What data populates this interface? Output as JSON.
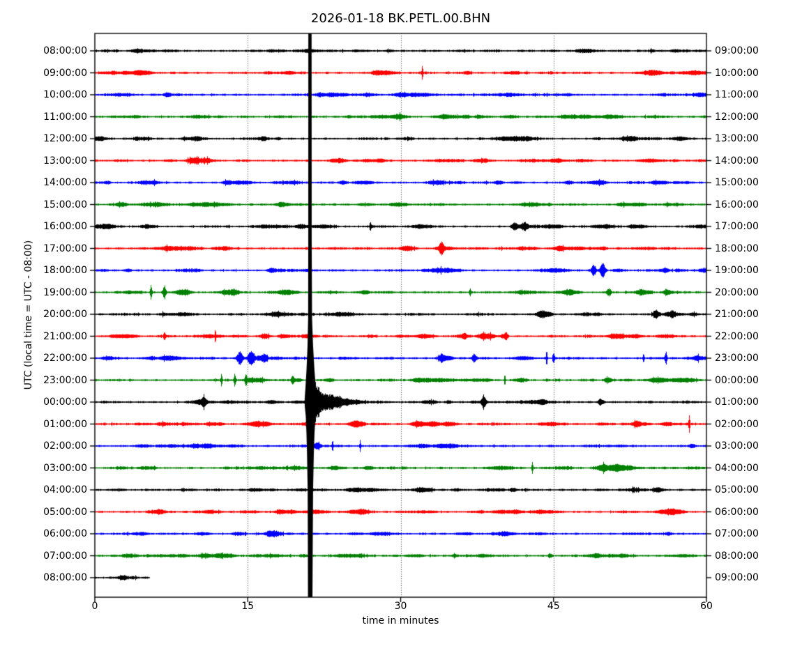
{
  "title": "2026-01-18 BK.PETL.00.BHN",
  "axes": {
    "xlabel": "time in minutes",
    "ylabel": "UTC (local time = UTC - 08:00)",
    "x_ticks": [
      "0",
      "15",
      "30",
      "45",
      "60"
    ],
    "x_tick_minutes": [
      0,
      15,
      30,
      45,
      60
    ],
    "x_range": [
      0,
      60
    ],
    "gridline_minutes": [
      15,
      30,
      45
    ],
    "grid_style": "dotted-vertical"
  },
  "chart_data": {
    "type": "line",
    "subtype": "seismogram-dayplot",
    "station": "BK.PETL.00.BHN",
    "date": "2026-01-18",
    "minutes_per_row": 60,
    "color_cycle": [
      "#000000",
      "#ff0000",
      "#0000ff",
      "#008000"
    ],
    "major_event": {
      "row_index": 16,
      "row_utc": "00:00:00",
      "minute": 21.0,
      "description": "Large clipped seismic event; spike spans entire plot height with decaying coda to ~minute 26"
    },
    "rows": [
      {
        "utc": "08:00:00",
        "right": "09:00:00",
        "color": "#000000",
        "duration_min": 60,
        "events": []
      },
      {
        "utc": "09:00:00",
        "right": "10:00:00",
        "color": "#ff0000",
        "duration_min": 60,
        "events": [
          {
            "m": 32.1,
            "a": 9,
            "w": 0.06
          }
        ]
      },
      {
        "utc": "10:00:00",
        "right": "11:00:00",
        "color": "#0000ff",
        "duration_min": 60,
        "events": []
      },
      {
        "utc": "11:00:00",
        "right": "12:00:00",
        "color": "#008000",
        "duration_min": 60,
        "events": []
      },
      {
        "utc": "12:00:00",
        "right": "13:00:00",
        "color": "#000000",
        "duration_min": 60,
        "events": []
      },
      {
        "utc": "13:00:00",
        "right": "14:00:00",
        "color": "#ff0000",
        "duration_min": 60,
        "events": []
      },
      {
        "utc": "14:00:00",
        "right": "15:00:00",
        "color": "#0000ff",
        "duration_min": 60,
        "events": [
          {
            "m": 49.5,
            "a": 2.5,
            "w": 0.6
          }
        ]
      },
      {
        "utc": "15:00:00",
        "right": "16:00:00",
        "color": "#008000",
        "duration_min": 60,
        "events": [
          {
            "m": 18.3,
            "a": 3,
            "w": 0.5
          }
        ]
      },
      {
        "utc": "16:00:00",
        "right": "17:00:00",
        "color": "#000000",
        "duration_min": 60,
        "events": [
          {
            "m": 27.0,
            "a": 6,
            "w": 0.07
          },
          {
            "m": 41.2,
            "a": 4,
            "w": 0.35
          },
          {
            "m": 42.1,
            "a": 3.5,
            "w": 0.3
          }
        ]
      },
      {
        "utc": "17:00:00",
        "right": "18:00:00",
        "color": "#ff0000",
        "duration_min": 60,
        "events": [
          {
            "m": 30.6,
            "a": 3,
            "w": 0.7
          },
          {
            "m": 34.0,
            "a": 6,
            "w": 0.22
          }
        ]
      },
      {
        "utc": "18:00:00",
        "right": "19:00:00",
        "color": "#0000ff",
        "duration_min": 60,
        "events": [
          {
            "m": 48.9,
            "a": 8,
            "w": 0.22
          },
          {
            "m": 49.8,
            "a": 9,
            "w": 0.28
          },
          {
            "m": 56.0,
            "a": 3,
            "w": 0.3
          }
        ]
      },
      {
        "utc": "19:00:00",
        "right": "20:00:00",
        "color": "#008000",
        "duration_min": 60,
        "events": [
          {
            "m": 5.5,
            "a": 8,
            "w": 0.1
          },
          {
            "m": 6.8,
            "a": 7,
            "w": 0.16
          },
          {
            "m": 8.7,
            "a": 3.5,
            "w": 0.7
          },
          {
            "m": 36.8,
            "a": 5,
            "w": 0.09
          },
          {
            "m": 50.4,
            "a": 5,
            "w": 0.22
          },
          {
            "m": 56.2,
            "a": 3,
            "w": 0.4
          }
        ]
      },
      {
        "utc": "20:00:00",
        "right": "21:00:00",
        "color": "#000000",
        "duration_min": 60,
        "events": [
          {
            "m": 55.0,
            "a": 5,
            "w": 0.3
          },
          {
            "m": 56.6,
            "a": 3,
            "w": 0.3
          }
        ]
      },
      {
        "utc": "21:00:00",
        "right": "22:00:00",
        "color": "#ff0000",
        "duration_min": 60,
        "events": [
          {
            "m": 6.8,
            "a": 5,
            "w": 0.09
          },
          {
            "m": 11.8,
            "a": 10,
            "w": 0.05
          },
          {
            "m": 16.6,
            "a": 3,
            "w": 0.4
          },
          {
            "m": 36.2,
            "a": 4,
            "w": 0.3
          },
          {
            "m": 40.3,
            "a": 4,
            "w": 0.2
          }
        ]
      },
      {
        "utc": "22:00:00",
        "right": "23:00:00",
        "color": "#0000ff",
        "duration_min": 60,
        "events": [
          {
            "m": 14.2,
            "a": 8,
            "w": 0.28
          },
          {
            "m": 15.3,
            "a": 9,
            "w": 0.24
          },
          {
            "m": 16.6,
            "a": 4,
            "w": 0.3
          },
          {
            "m": 34.0,
            "a": 5,
            "w": 0.3
          },
          {
            "m": 37.2,
            "a": 4,
            "w": 0.2
          },
          {
            "m": 44.3,
            "a": 10,
            "w": 0.07
          },
          {
            "m": 45.0,
            "a": 8,
            "w": 0.1
          },
          {
            "m": 53.8,
            "a": 7,
            "w": 0.08
          },
          {
            "m": 56.0,
            "a": 9,
            "w": 0.1
          }
        ]
      },
      {
        "utc": "23:00:00",
        "right": "00:00:00",
        "color": "#008000",
        "duration_min": 60,
        "events": [
          {
            "m": 12.4,
            "a": 9,
            "w": 0.07
          },
          {
            "m": 13.7,
            "a": 8,
            "w": 0.11
          },
          {
            "m": 14.8,
            "a": 8,
            "w": 0.1
          },
          {
            "m": 19.4,
            "a": 5,
            "w": 0.18
          },
          {
            "m": 40.2,
            "a": 8,
            "w": 0.06
          },
          {
            "m": 50.3,
            "a": 3,
            "w": 0.4
          }
        ]
      },
      {
        "utc": "00:00:00",
        "right": "01:00:00",
        "color": "#000000",
        "duration_min": 60,
        "events": [
          {
            "m": 10.7,
            "a": 5,
            "w": 0.22
          },
          {
            "m": 21.55,
            "a": 26,
            "w": 0.22
          },
          {
            "m": 21.95,
            "a": 17,
            "w": 0.3
          },
          {
            "m": 22.55,
            "a": 11,
            "w": 0.35
          },
          {
            "m": 23.2,
            "a": 8,
            "w": 0.4
          },
          {
            "m": 23.9,
            "a": 7,
            "w": 0.35
          },
          {
            "m": 24.7,
            "a": 4,
            "w": 0.5
          },
          {
            "m": 25.7,
            "a": 2.5,
            "w": 0.6
          },
          {
            "m": 38.1,
            "a": 8,
            "w": 0.2
          },
          {
            "m": 49.6,
            "a": 3.5,
            "w": 0.3
          }
        ]
      },
      {
        "utc": "01:00:00",
        "right": "02:00:00",
        "color": "#ff0000",
        "duration_min": 60,
        "events": [
          {
            "m": 31.6,
            "a": 3,
            "w": 0.5
          },
          {
            "m": 34.8,
            "a": 2.5,
            "w": 0.6
          },
          {
            "m": 58.3,
            "a": 12,
            "w": 0.06
          }
        ]
      },
      {
        "utc": "02:00:00",
        "right": "03:00:00",
        "color": "#0000ff",
        "duration_min": 60,
        "events": [
          {
            "m": 21.8,
            "a": 4,
            "w": 0.35
          },
          {
            "m": 23.3,
            "a": 8,
            "w": 0.06
          },
          {
            "m": 26.0,
            "a": 7,
            "w": 0.07
          }
        ]
      },
      {
        "utc": "03:00:00",
        "right": "04:00:00",
        "color": "#008000",
        "duration_min": 60,
        "events": [
          {
            "m": 42.9,
            "a": 8,
            "w": 0.07
          },
          {
            "m": 49.8,
            "a": 3,
            "w": 0.4
          }
        ]
      },
      {
        "utc": "04:00:00",
        "right": "05:00:00",
        "color": "#000000",
        "duration_min": 60,
        "events": []
      },
      {
        "utc": "05:00:00",
        "right": "06:00:00",
        "color": "#ff0000",
        "duration_min": 60,
        "events": []
      },
      {
        "utc": "06:00:00",
        "right": "07:00:00",
        "color": "#0000ff",
        "duration_min": 60,
        "events": []
      },
      {
        "utc": "07:00:00",
        "right": "08:00:00",
        "color": "#008000",
        "duration_min": 60,
        "events": [
          {
            "m": 44.6,
            "a": 3.5,
            "w": 0.14
          }
        ]
      },
      {
        "utc": "08:00:00",
        "right": "09:00:00",
        "color": "#000000",
        "duration_min": 5.35,
        "events": []
      }
    ]
  }
}
